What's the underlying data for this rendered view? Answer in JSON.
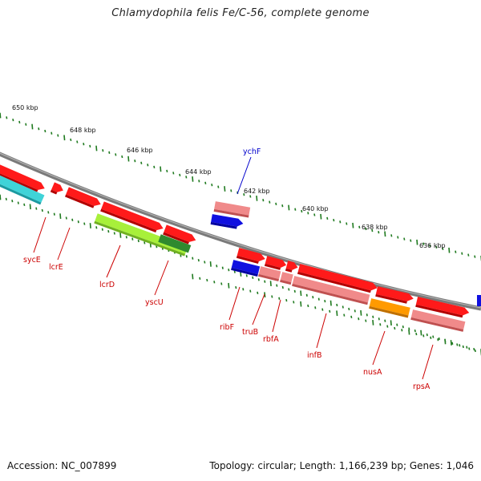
{
  "title": "Chlamydophila felis Fe/C-56, complete genome",
  "footer": {
    "accession": "Accession: NC_007899",
    "topology": "Topology: circular; Length: 1,166,239 bp; Genes: 1,046"
  },
  "scale_labels": [
    "650 kbp",
    "648 kbp",
    "646 kbp",
    "644 kbp",
    "642 kbp",
    "640 kbp",
    "638 kbp",
    "636 kbp"
  ],
  "colors": {
    "backbone": "#7a7a7a",
    "tick": "#1f7a1f",
    "gene_red": "#ff1a1a",
    "gene_pink": "#f08a8a",
    "gene_cyan": "#3fd3d8",
    "gene_lime": "#a8f03a",
    "gene_darkgreen": "#2f8a2f",
    "gene_blue": "#1010e0",
    "gene_orange": "#ff9a00",
    "label_red": "#cc0000",
    "label_blue": "#0000cc"
  },
  "genes": [
    {
      "name": "sycE",
      "color": "red"
    },
    {
      "name": "lcrE",
      "color": "red"
    },
    {
      "name": "lcrD",
      "color": "red"
    },
    {
      "name": "yscU",
      "color": "red"
    },
    {
      "name": "ychF",
      "color": "blue"
    },
    {
      "name": "ribF",
      "color": "red"
    },
    {
      "name": "truB",
      "color": "red"
    },
    {
      "name": "rbfA",
      "color": "red"
    },
    {
      "name": "infB",
      "color": "red"
    },
    {
      "name": "nusA",
      "color": "red"
    },
    {
      "name": "rpsA",
      "color": "red"
    }
  ]
}
